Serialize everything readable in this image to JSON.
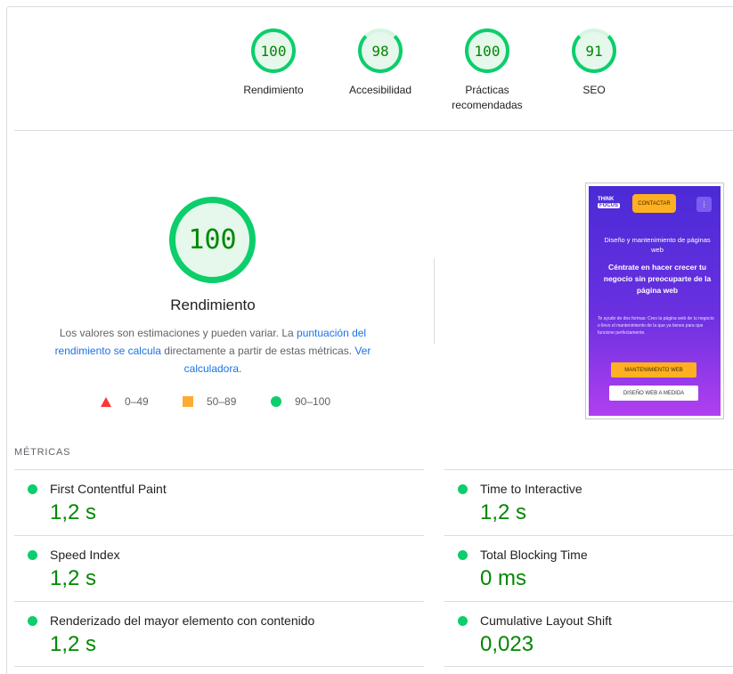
{
  "top_gauges": [
    {
      "score": "100",
      "label": "Rendimiento"
    },
    {
      "score": "98",
      "label": "Accesibilidad"
    },
    {
      "score": "100",
      "label": "Prácticas recomendadas"
    },
    {
      "score": "91",
      "label": "SEO"
    }
  ],
  "performance": {
    "score": "100",
    "title": "Rendimiento",
    "desc_part1": "Los valores son estimaciones y pueden variar. La ",
    "desc_link1": "puntuación del rendimiento se calcula",
    "desc_part2": " directamente a partir de estas métricas. ",
    "desc_link2": "Ver calculadora",
    "desc_part3": "."
  },
  "legend": {
    "fail": "0–49",
    "average": "50–89",
    "pass": "90–100"
  },
  "phone": {
    "logo_top": "THINK",
    "logo_bottom": "FOCUS",
    "contact_button": "CONTACTAR",
    "menu_icon": "⋮",
    "heading1": "Diseño y mantenimiento de páginas web",
    "heading2": "Céntrate en hacer crecer tu negocio sin preocuparte de la página web",
    "body": "Te ayudo de dos formas: Creo la página web de tu negocio o llevo el mantenimiento de la que ya tienes para que funcione perfectamente.",
    "button1": "MANTENIMIENTO WEB",
    "button2": "DISEÑO WEB A MEDIDA"
  },
  "metrics_heading": "MÉTRICAS",
  "metrics": [
    {
      "title": "First Contentful Paint",
      "value": "1,2 s"
    },
    {
      "title": "Time to Interactive",
      "value": "1,2 s"
    },
    {
      "title": "Speed Index",
      "value": "1,2 s"
    },
    {
      "title": "Total Blocking Time",
      "value": "0 ms"
    },
    {
      "title": "Renderizado del mayor elemento con contenido",
      "value": "1,2 s"
    },
    {
      "title": "Cumulative Layout Shift",
      "value": "0,023"
    }
  ],
  "colors": {
    "pass": "#0cce6b",
    "pass_text": "#008800",
    "average": "#ffaa33",
    "fail": "#ff3333",
    "link": "#1a73e8"
  }
}
